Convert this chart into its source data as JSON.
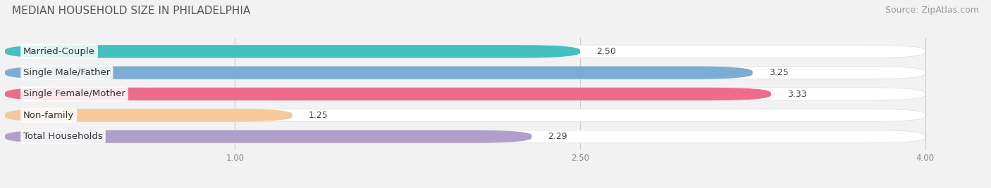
{
  "title": "MEDIAN HOUSEHOLD SIZE IN PHILADELPHIA",
  "source": "Source: ZipAtlas.com",
  "categories": [
    "Married-Couple",
    "Single Male/Father",
    "Single Female/Mother",
    "Non-family",
    "Total Households"
  ],
  "values": [
    2.5,
    3.25,
    3.33,
    1.25,
    2.29
  ],
  "bar_colors": [
    "#45BFBF",
    "#7AACD6",
    "#EE6B8C",
    "#F5C99A",
    "#B09FCC"
  ],
  "xlim": [
    0,
    4.2
  ],
  "xmin": 0,
  "xticks": [
    1.0,
    2.5,
    4.0
  ],
  "background_color": "#f2f2f2",
  "bar_bg_color": "#ffffff",
  "title_fontsize": 11,
  "source_fontsize": 9,
  "label_fontsize": 9.5,
  "value_fontsize": 9
}
